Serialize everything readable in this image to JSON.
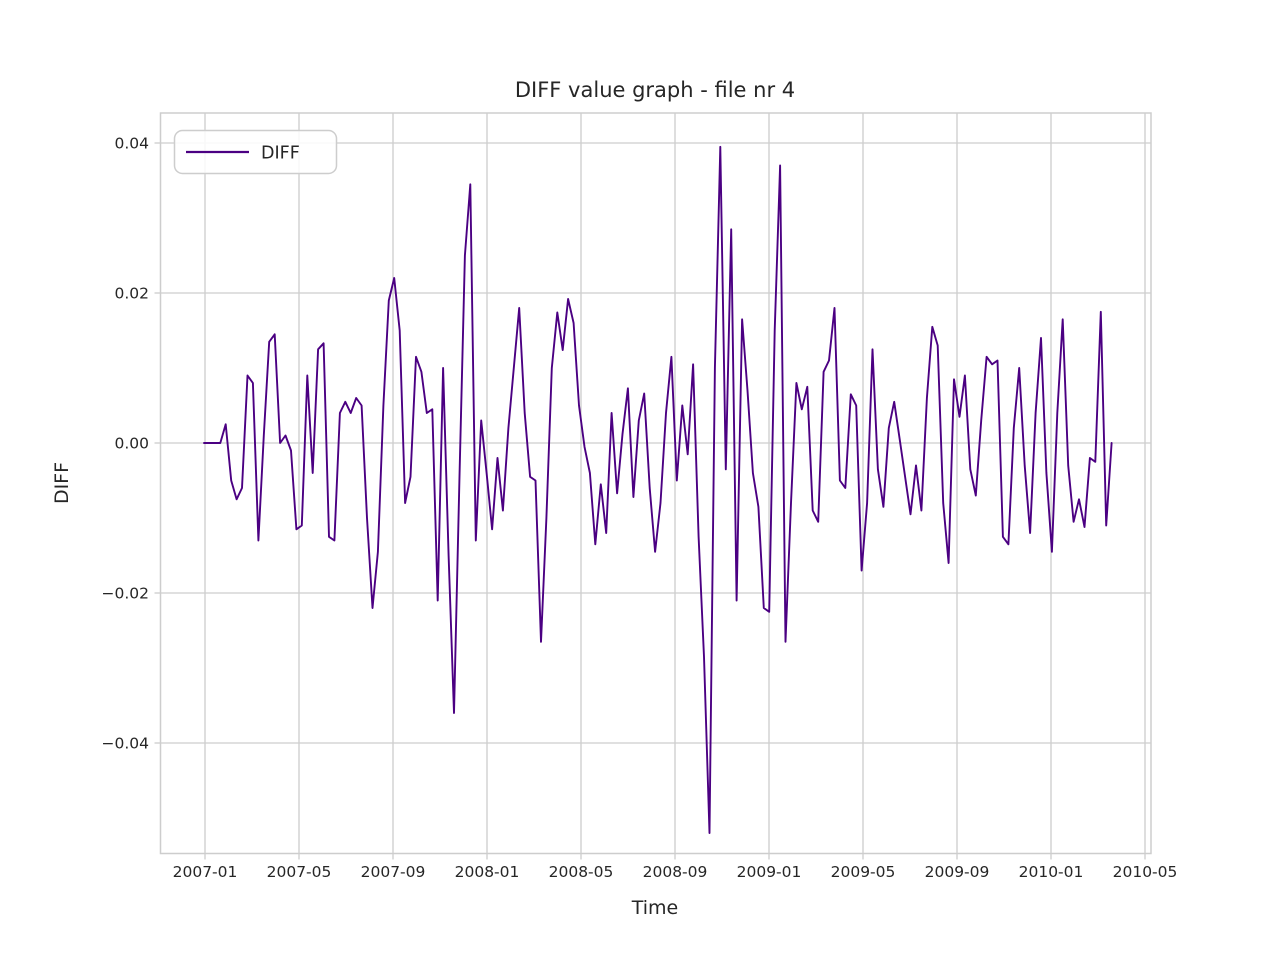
{
  "page": {
    "background": "#ffffff"
  },
  "chart_data": {
    "type": "line",
    "title": "DIFF value graph - file nr 4",
    "xlabel": "Time",
    "ylabel": "DIFF",
    "legend": {
      "position": "upper-left",
      "entries": [
        "DIFF"
      ]
    },
    "legend_label": "DIFF",
    "style": {
      "line_color": "#4B0082",
      "grid": true,
      "grid_color": "#cdcdcd",
      "spine_color": "#cdcdcd",
      "text_color": "#262626",
      "background": "#ffffff"
    },
    "x_axis": {
      "tick_labels": [
        "2007-01",
        "2007-05",
        "2007-09",
        "2008-01",
        "2008-05",
        "2008-09",
        "2009-01",
        "2009-05",
        "2009-09",
        "2010-01",
        "2010-05"
      ],
      "tick_months_from_start": [
        0,
        4,
        8,
        12,
        16,
        20,
        24,
        28,
        32,
        36,
        40
      ]
    },
    "y_axis": {
      "tick_labels": [
        "0.04",
        "0.02",
        "0.00",
        "−0.02",
        "−0.04"
      ],
      "tick_values": [
        0.04,
        0.02,
        0.0,
        -0.02,
        -0.04
      ],
      "ylim": [
        -0.0547,
        0.044
      ]
    },
    "series": [
      {
        "name": "DIFF",
        "start_date": "2007-01-05",
        "interval_days": 7,
        "values": [
          0.0,
          0.0,
          0.0,
          0.0,
          0.0025,
          -0.005,
          -0.0075,
          -0.006,
          0.009,
          0.008,
          -0.013,
          0.001,
          0.0135,
          0.0145,
          0.0,
          0.001,
          -0.001,
          -0.0115,
          -0.011,
          0.009,
          -0.004,
          0.0125,
          0.0133,
          -0.0125,
          -0.013,
          0.004,
          0.0055,
          0.004,
          0.006,
          0.005,
          -0.01,
          -0.022,
          -0.0145,
          0.005,
          0.019,
          0.022,
          0.015,
          -0.008,
          -0.0045,
          0.0115,
          0.0095,
          0.004,
          0.0045,
          -0.021,
          0.01,
          -0.015,
          -0.036,
          -0.005,
          0.025,
          0.0345,
          -0.013,
          0.003,
          -0.004,
          -0.0115,
          -0.002,
          -0.009,
          0.002,
          0.01,
          0.018,
          0.004,
          -0.0045,
          -0.005,
          -0.0265,
          -0.01,
          0.01,
          0.0174,
          0.0124,
          0.0192,
          0.016,
          0.005,
          -0.0005,
          -0.004,
          -0.0135,
          -0.0055,
          -0.012,
          0.004,
          -0.0067,
          0.0012,
          0.0073,
          -0.0072,
          0.003,
          0.0066,
          -0.006,
          -0.0145,
          -0.008,
          0.004,
          0.0115,
          -0.005,
          0.005,
          -0.0015,
          0.0105,
          -0.0125,
          -0.0285,
          -0.052,
          0.01,
          0.0395,
          -0.0035,
          0.0285,
          -0.021,
          0.0165,
          0.007,
          -0.004,
          -0.0085,
          -0.022,
          -0.0225,
          0.015,
          0.037,
          -0.0265,
          -0.008,
          0.008,
          0.0045,
          0.0075,
          -0.009,
          -0.0105,
          0.0095,
          0.011,
          0.018,
          -0.005,
          -0.006,
          0.0065,
          0.005,
          -0.017,
          -0.008,
          0.0125,
          -0.0035,
          -0.0085,
          0.002,
          0.0055,
          0.0005,
          -0.0045,
          -0.0095,
          -0.003,
          -0.009,
          0.006,
          0.0155,
          0.013,
          -0.008,
          -0.016,
          0.0085,
          0.0035,
          0.009,
          -0.0035,
          -0.007,
          0.003,
          0.0115,
          0.0105,
          0.011,
          -0.0125,
          -0.0135,
          0.002,
          0.01,
          -0.003,
          -0.012,
          0.004,
          0.014,
          -0.004,
          -0.0145,
          0.004,
          0.0165,
          -0.003,
          -0.0105,
          -0.0075,
          -0.0112,
          -0.002,
          -0.0025,
          0.0175,
          -0.011,
          0.0
        ]
      }
    ]
  }
}
